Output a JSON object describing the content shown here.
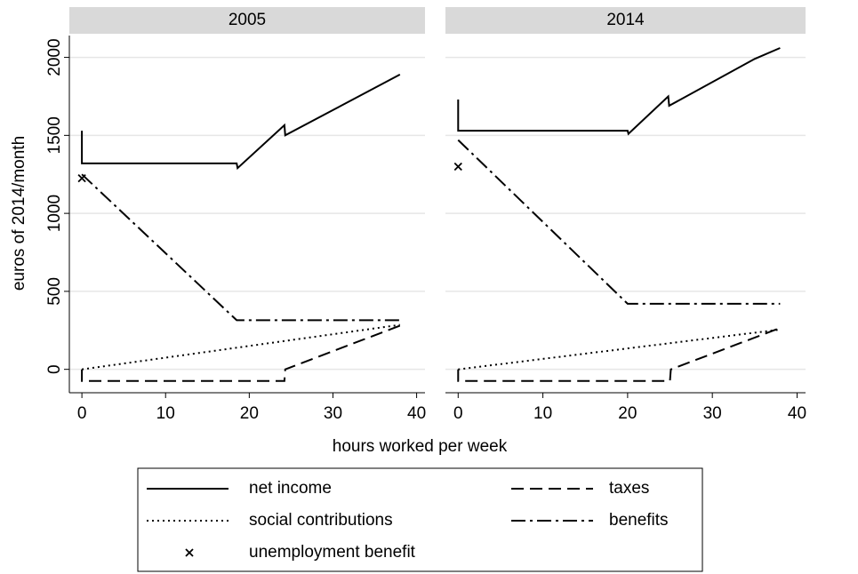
{
  "chart_data": [
    {
      "type": "line",
      "title": "2005",
      "xlim": [
        -1.5,
        41
      ],
      "ylim": [
        -150,
        2140
      ],
      "xticks": [
        0,
        10,
        20,
        30,
        40
      ],
      "yticks": [
        0,
        500,
        1000,
        1500,
        2000
      ],
      "grid": true,
      "series": [
        {
          "name": "net income",
          "color": "#000000",
          "style": "solid",
          "x": [
            0,
            0,
            18.5,
            18.6,
            24.2,
            24.3,
            38
          ],
          "values": [
            1530,
            1320,
            1320,
            1290,
            1565,
            1500,
            1890
          ]
        },
        {
          "name": "taxes",
          "color": "#000000",
          "style": "dashed",
          "x": [
            0,
            0,
            24.2,
            24.3,
            38
          ],
          "values": [
            0,
            -75,
            -75,
            0,
            280
          ]
        },
        {
          "name": "social contributions",
          "color": "#000000",
          "style": "dotted",
          "x": [
            0,
            38
          ],
          "values": [
            0,
            285
          ]
        },
        {
          "name": "benefits",
          "color": "#000000",
          "style": "dashdot",
          "x": [
            0,
            18.5,
            38
          ],
          "values": [
            1250,
            315,
            315
          ]
        },
        {
          "name": "unemployment benefit",
          "color": "#000000",
          "style": "marker",
          "x": [
            0
          ],
          "values": [
            1225
          ]
        }
      ]
    },
    {
      "type": "line",
      "title": "2014",
      "xlim": [
        -1.5,
        41
      ],
      "ylim": [
        -150,
        2140
      ],
      "xticks": [
        0,
        10,
        20,
        30,
        40
      ],
      "yticks": [
        0,
        500,
        1000,
        1500,
        2000
      ],
      "grid": true,
      "series": [
        {
          "name": "net income",
          "color": "#000000",
          "style": "solid",
          "x": [
            0,
            0,
            20,
            20.1,
            24.8,
            24.9,
            35,
            38
          ],
          "values": [
            1730,
            1530,
            1530,
            1510,
            1750,
            1690,
            1990,
            2060
          ]
        },
        {
          "name": "taxes",
          "color": "#000000",
          "style": "dashed",
          "x": [
            0,
            0,
            25,
            25.1,
            38
          ],
          "values": [
            0,
            -75,
            -75,
            0,
            265
          ]
        },
        {
          "name": "social contributions",
          "color": "#000000",
          "style": "dotted",
          "x": [
            0,
            38
          ],
          "values": [
            0,
            255
          ]
        },
        {
          "name": "benefits",
          "color": "#000000",
          "style": "dashdot",
          "x": [
            0,
            20,
            38
          ],
          "values": [
            1470,
            420,
            420
          ]
        },
        {
          "name": "unemployment benefit",
          "color": "#000000",
          "style": "marker",
          "x": [
            0
          ],
          "values": [
            1300
          ]
        }
      ]
    }
  ],
  "xlabel": "hours worked per week",
  "ylabel": "euros of 2014/month"
}
